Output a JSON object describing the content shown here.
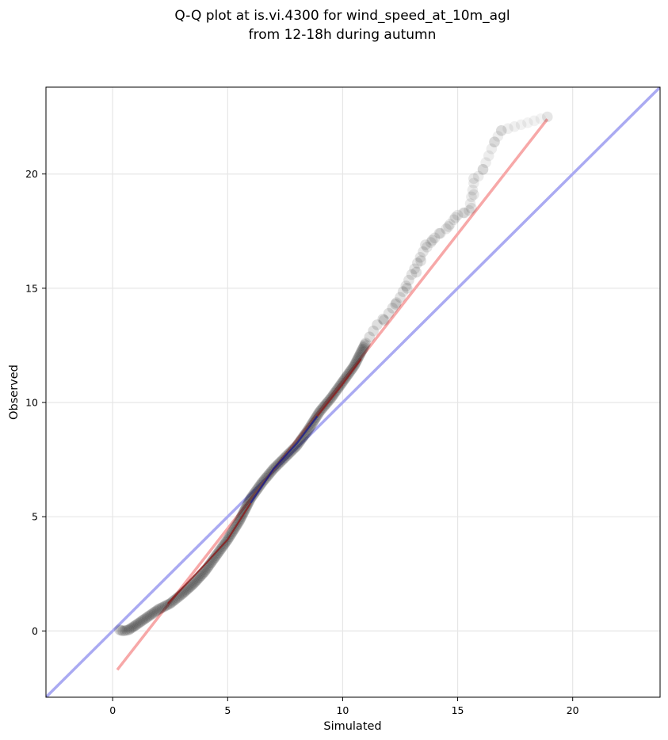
{
  "chart_data": {
    "type": "scatter",
    "title_line1": "Q-Q plot at is.vi.4300 for wind_speed_at_10m_agl",
    "title_line2": "from 12-18h during autumn",
    "xlabel": "Simulated",
    "ylabel": "Observed",
    "xlim": [
      -2.9,
      23.8
    ],
    "ylim": [
      -2.9,
      23.8
    ],
    "xticks": [
      0,
      5,
      10,
      15,
      20
    ],
    "yticks": [
      0,
      5,
      10,
      15,
      20
    ],
    "xtick_labels": [
      "0",
      "5",
      "10",
      "15",
      "20"
    ],
    "ytick_labels": [
      "0",
      "5",
      "10",
      "15",
      "20"
    ],
    "grid": true,
    "identity_line": {
      "from": [
        -2.9,
        -2.9
      ],
      "to": [
        23.8,
        23.8
      ],
      "color": "#aaaaf2"
    },
    "fit_line": {
      "from": [
        0.2,
        -1.7
      ],
      "to": [
        18.9,
        22.4
      ],
      "color": "#f7a8a8"
    },
    "segment_lines": [
      {
        "color": "#8b1a1a",
        "points": [
          [
            2.4,
            1.2
          ],
          [
            4.0,
            2.9
          ],
          [
            5.0,
            4.0
          ],
          [
            6.0,
            5.6
          ]
        ]
      },
      {
        "color": "#1a1a8b",
        "points": [
          [
            6.0,
            5.6
          ],
          [
            7.0,
            7.1
          ],
          [
            8.0,
            8.2
          ],
          [
            8.9,
            9.4
          ]
        ]
      },
      {
        "color": "#8b1a1a",
        "points": [
          [
            8.9,
            9.4
          ],
          [
            10.0,
            10.8
          ],
          [
            10.8,
            11.9
          ]
        ]
      }
    ],
    "point_color": "#000000",
    "quantile_curve": [
      [
        0.3,
        0.05
      ],
      [
        0.45,
        0.0
      ],
      [
        0.7,
        0.05
      ],
      [
        1.0,
        0.25
      ],
      [
        1.5,
        0.6
      ],
      [
        2.0,
        0.95
      ],
      [
        2.5,
        1.2
      ],
      [
        3.0,
        1.6
      ],
      [
        3.5,
        2.05
      ],
      [
        4.0,
        2.6
      ],
      [
        4.5,
        3.3
      ],
      [
        5.0,
        4.0
      ],
      [
        5.5,
        4.8
      ],
      [
        6.0,
        5.8
      ],
      [
        6.5,
        6.5
      ],
      [
        7.0,
        7.1
      ],
      [
        7.5,
        7.6
      ],
      [
        8.0,
        8.1
      ],
      [
        8.5,
        8.8
      ],
      [
        9.0,
        9.6
      ],
      [
        9.5,
        10.2
      ],
      [
        10.0,
        10.9
      ],
      [
        10.5,
        11.6
      ],
      [
        11.0,
        12.6
      ],
      [
        11.5,
        13.4
      ],
      [
        12.0,
        13.9
      ],
      [
        12.5,
        14.6
      ],
      [
        13.0,
        15.6
      ],
      [
        13.5,
        16.6
      ],
      [
        14.0,
        17.2
      ],
      [
        14.5,
        17.6
      ],
      [
        15.0,
        18.2
      ],
      [
        15.5,
        18.4
      ],
      [
        15.7,
        19.6
      ],
      [
        16.1,
        20.2
      ],
      [
        16.6,
        21.4
      ],
      [
        16.9,
        21.9
      ],
      [
        18.9,
        22.5
      ]
    ],
    "tail_points": [
      [
        11.8,
        13.6
      ],
      [
        12.3,
        14.3
      ],
      [
        12.8,
        15.0
      ],
      [
        13.2,
        15.7
      ],
      [
        13.4,
        16.2
      ],
      [
        13.6,
        16.9
      ],
      [
        13.9,
        17.1
      ],
      [
        14.2,
        17.4
      ],
      [
        14.6,
        17.7
      ],
      [
        14.9,
        18.1
      ],
      [
        15.3,
        18.3
      ],
      [
        15.6,
        18.5
      ],
      [
        15.7,
        19.1
      ],
      [
        15.7,
        19.8
      ],
      [
        16.1,
        20.2
      ],
      [
        16.6,
        21.4
      ],
      [
        16.9,
        21.9
      ],
      [
        18.9,
        22.5
      ]
    ]
  }
}
